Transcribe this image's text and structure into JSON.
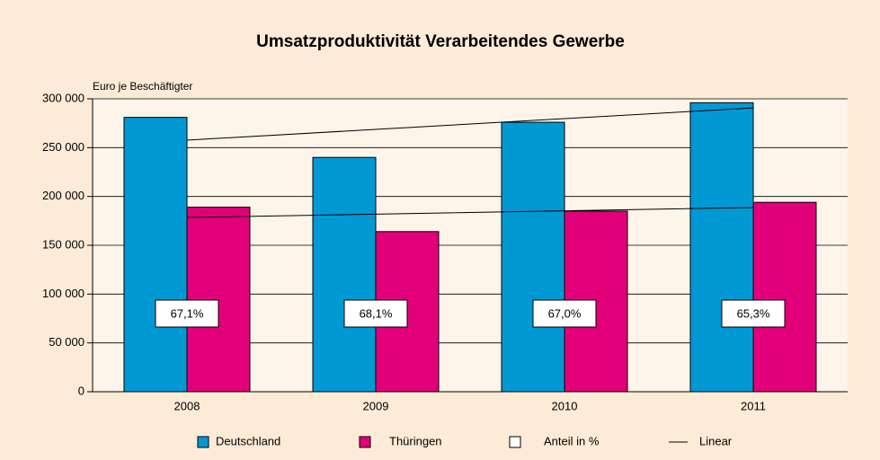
{
  "chart_data": {
    "type": "bar",
    "title": "Umsatzproduktivität Verarbeitendes Gewerbe",
    "y_label": "Euro je Beschäftigter",
    "categories": [
      "2008",
      "2009",
      "2010",
      "2011"
    ],
    "series": [
      {
        "name": "Deutschland",
        "color": "#0099d4",
        "values": [
          281000,
          240000,
          276000,
          296000
        ]
      },
      {
        "name": "Thüringen",
        "color": "#e2007a",
        "values": [
          189000,
          164000,
          185000,
          194000
        ]
      }
    ],
    "share": {
      "name": "Anteil in %",
      "values": [
        67.1,
        68.1,
        67.0,
        65.3
      ],
      "value_labels": [
        "67,1%",
        "68,1%",
        "67,0%",
        "65,3%"
      ]
    },
    "trendlines": {
      "name": "Linear",
      "color": "#000000",
      "series": [
        {
          "values": [
            257700,
            268700,
            279700,
            290700
          ]
        },
        {
          "values": [
            178500,
            181900,
            185300,
            188700
          ]
        }
      ]
    },
    "ylim": [
      0,
      300000
    ],
    "yticks": [
      0,
      {
        "value": 50000,
        "label": "50 000"
      },
      {
        "value": 100000,
        "label": "100 000"
      },
      {
        "value": 150000,
        "label": "150 000"
      },
      {
        "value": 200000,
        "label": "200 000"
      },
      {
        "value": 250000,
        "label": "250 000"
      },
      {
        "value": 300000,
        "label": "300 000"
      }
    ],
    "grid": true
  }
}
